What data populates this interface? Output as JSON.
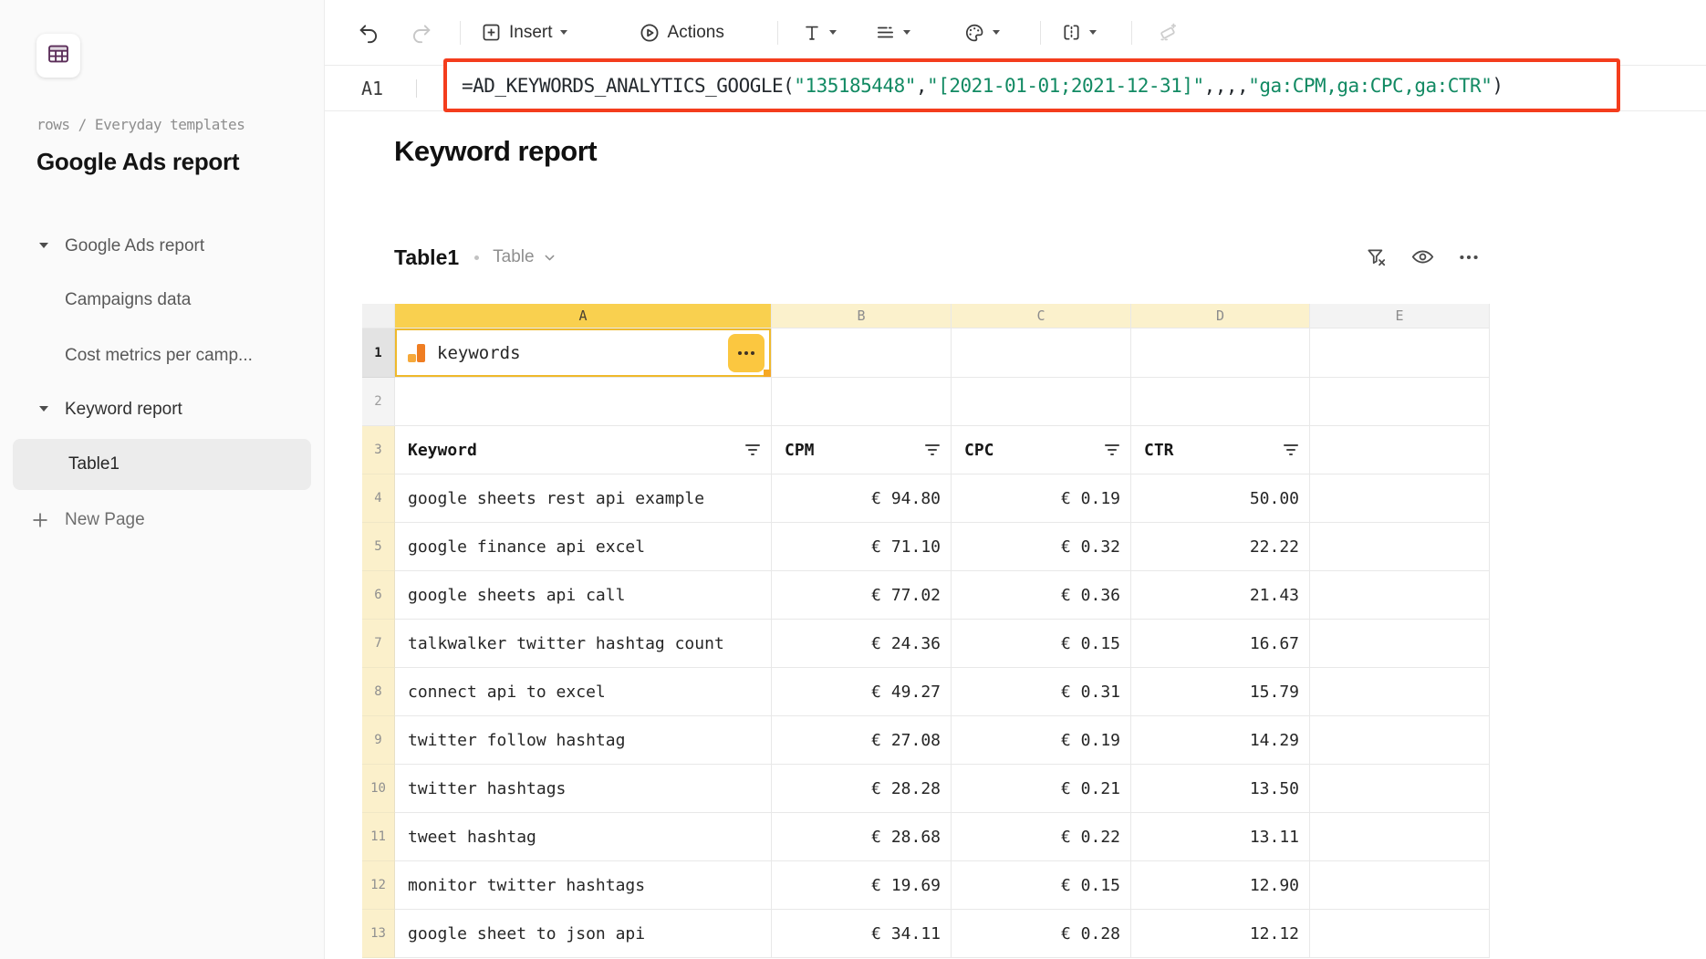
{
  "sidebar": {
    "breadcrumb": "rows / Everyday templates",
    "workspace_title": "Google Ads report",
    "items": [
      {
        "label": "Google Ads report",
        "expanded": true
      },
      {
        "label": "Campaigns data"
      },
      {
        "label": "Cost metrics per camp..."
      },
      {
        "label": "Keyword report",
        "expanded": true
      },
      {
        "label": "Table1",
        "active": true
      }
    ],
    "new_page_label": "New Page"
  },
  "toolbar": {
    "insert_label": "Insert",
    "actions_label": "Actions"
  },
  "formula_bar": {
    "cell_ref": "A1",
    "formula_parts": [
      {
        "type": "plain",
        "text": "=AD_KEYWORDS_ANALYTICS_GOOGLE("
      },
      {
        "type": "string",
        "text": "\"135185448\""
      },
      {
        "type": "plain",
        "text": ","
      },
      {
        "type": "string",
        "text": "\"[2021-01-01;2021-12-31]\""
      },
      {
        "type": "plain",
        "text": ",,,,"
      },
      {
        "type": "string",
        "text": "\"ga:CPM,ga:CPC,ga:CTR\""
      },
      {
        "type": "plain",
        "text": ")"
      }
    ]
  },
  "page": {
    "title": "Keyword report",
    "table_name": "Table1",
    "table_type_label": "Table"
  },
  "grid": {
    "column_letters": [
      "A",
      "B",
      "C",
      "D",
      "E"
    ],
    "selected_cell": "A1",
    "a1_label": "keywords",
    "header_row": [
      "Keyword",
      "CPM",
      "CPC",
      "CTR"
    ],
    "row_numbers": [
      1,
      2,
      3,
      4,
      5,
      6,
      7,
      8,
      9,
      10,
      11,
      12,
      13
    ],
    "rows": [
      {
        "n": 4,
        "keyword": "google sheets rest api example",
        "cpm": "€ 94.80",
        "cpc": "€ 0.19",
        "ctr": "50.00"
      },
      {
        "n": 5,
        "keyword": "google finance api excel",
        "cpm": "€ 71.10",
        "cpc": "€ 0.32",
        "ctr": "22.22"
      },
      {
        "n": 6,
        "keyword": "google sheets api call",
        "cpm": "€ 77.02",
        "cpc": "€ 0.36",
        "ctr": "21.43"
      },
      {
        "n": 7,
        "keyword": "talkwalker twitter hashtag count",
        "cpm": "€ 24.36",
        "cpc": "€ 0.15",
        "ctr": "16.67"
      },
      {
        "n": 8,
        "keyword": "connect api to excel",
        "cpm": "€ 49.27",
        "cpc": "€ 0.31",
        "ctr": "15.79"
      },
      {
        "n": 9,
        "keyword": "twitter follow hashtag",
        "cpm": "€ 27.08",
        "cpc": "€ 0.19",
        "ctr": "14.29"
      },
      {
        "n": 10,
        "keyword": "twitter hashtags",
        "cpm": "€ 28.28",
        "cpc": "€ 0.21",
        "ctr": "13.50"
      },
      {
        "n": 11,
        "keyword": "tweet hashtag",
        "cpm": "€ 28.68",
        "cpc": "€ 0.22",
        "ctr": "13.11"
      },
      {
        "n": 12,
        "keyword": "monitor twitter hashtags",
        "cpm": "€ 19.69",
        "cpc": "€ 0.15",
        "ctr": "12.90"
      },
      {
        "n": 13,
        "keyword": "google sheet to json api",
        "cpm": "€ 34.11",
        "cpc": "€ 0.28",
        "ctr": "12.12"
      }
    ]
  },
  "icons": {
    "toolbar": [
      "undo-icon",
      "redo-icon",
      "insert-icon",
      "actions-icon",
      "text-style-icon",
      "align-icon",
      "palette-icon",
      "borders-icon",
      "eraser-icon"
    ],
    "table_header": [
      "filter-clear-icon",
      "visibility-icon",
      "more-options-icon"
    ],
    "cell": [
      "analytics-icon",
      "filter-icon"
    ]
  },
  "colors": {
    "formula_highlight": "#F43D1D",
    "formula_string_green": "#128A63",
    "selected_column_header": "#F9D04F",
    "range_highlight": "#FBF1CC",
    "selection_border": "#EFB92B",
    "cell_menu_button": "#FBC740",
    "analytics_orange_light": "#F6A93B",
    "analytics_orange_dark": "#EF7D22"
  }
}
